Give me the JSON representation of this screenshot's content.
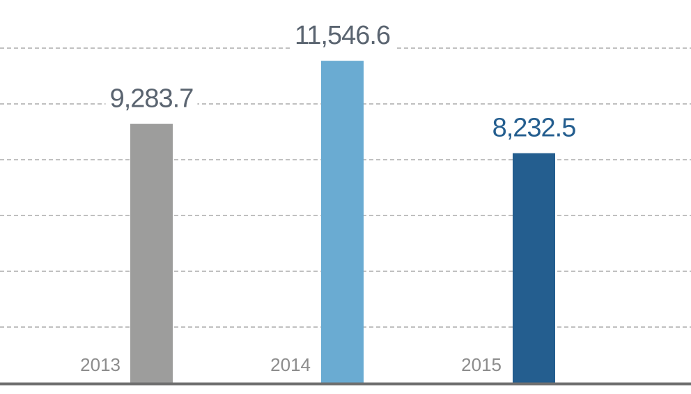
{
  "chart_data": {
    "type": "bar",
    "title": "",
    "xlabel": "",
    "ylabel": "",
    "categories": [
      "2013",
      "2014",
      "2015"
    ],
    "values": [
      9283.7,
      11546.6,
      8232.5
    ],
    "value_labels": [
      "9,283.7",
      "11,546.6",
      "8,232.5"
    ],
    "ylim": [
      0,
      12000
    ],
    "gridline_step": 2000,
    "grid": true,
    "grid_style": "dashed",
    "legend": "none",
    "colors": {
      "bars": [
        "#9d9d9c",
        "#6aabd2",
        "#245e8f"
      ],
      "value_labels": [
        "#5a6470",
        "#5a6470",
        "#245e8f"
      ],
      "category_labels": "#8c8c8c",
      "gridlines": "#9a9a9a",
      "baseline": "#6f6f6f"
    }
  }
}
